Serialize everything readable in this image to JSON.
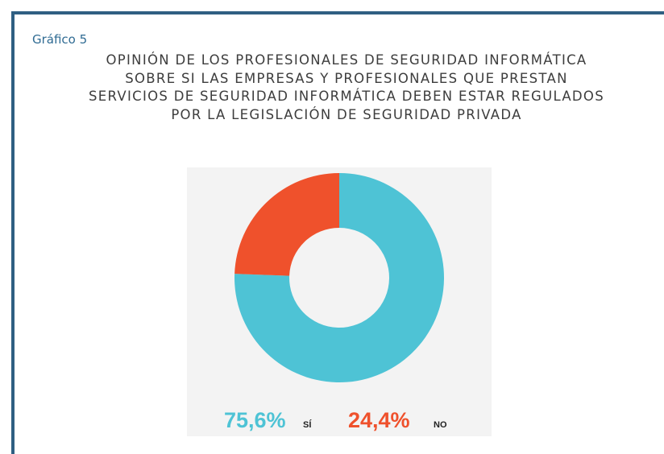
{
  "chart_data": {
    "type": "donut",
    "label": "Gráfico 5",
    "title": "OPINIÓN DE LOS PROFESIONALES DE SEGURIDAD INFORMÁTICA SOBRE SI LAS EMPRESAS Y PROFESIONALES QUE PRESTAN SERVICIOS DE SEGURIDAD INFORMÁTICA DEBEN ESTAR REGULADOS POR LA LEGISLACIÓN DE SEGURIDAD PRIVADA",
    "categories": [
      "SÍ",
      "NO"
    ],
    "series": [
      {
        "values": [
          75.6,
          24.4
        ],
        "value_labels": [
          "75,6%",
          "24,4%"
        ],
        "colors": [
          "#4ec3d5",
          "#ef512c"
        ]
      }
    ]
  }
}
